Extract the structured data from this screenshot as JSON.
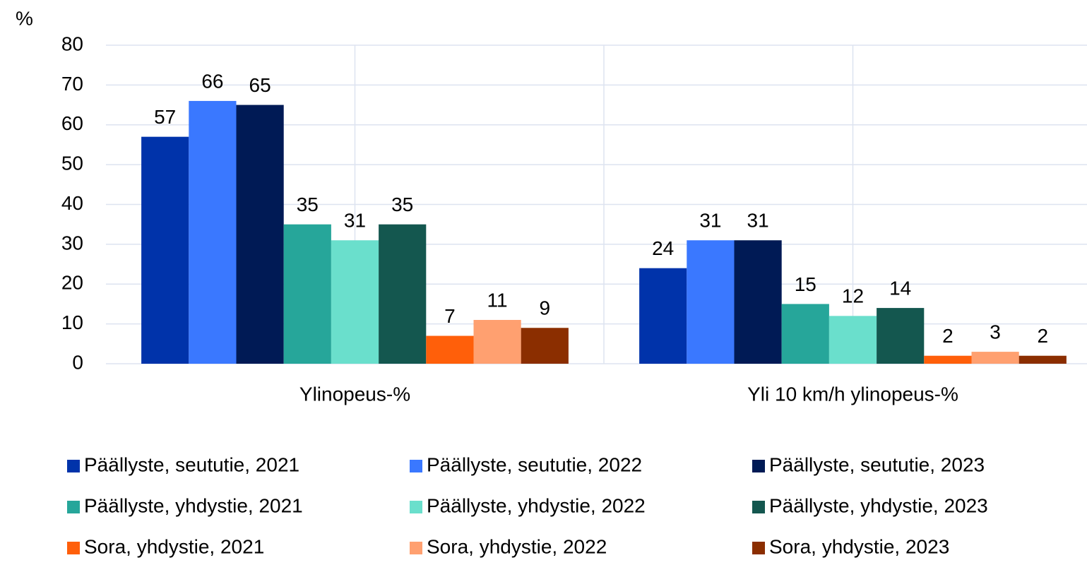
{
  "chart_data": {
    "type": "bar",
    "y_label": "%",
    "categories": [
      "Ylinopeus-%",
      "Yli 10 km/h ylinopeus-%"
    ],
    "ylim": [
      0,
      80
    ],
    "yticks": [
      0,
      10,
      20,
      30,
      40,
      50,
      60,
      70,
      80
    ],
    "grid": true,
    "series": [
      {
        "name": "Päällyste, seututie, 2021",
        "color": "#0033aa",
        "values": [
          57,
          24
        ]
      },
      {
        "name": "Päällyste, seututie, 2022",
        "color": "#3a78ff",
        "values": [
          66,
          31
        ]
      },
      {
        "name": "Päällyste, seututie, 2023",
        "color": "#001a55",
        "values": [
          65,
          31
        ]
      },
      {
        "name": "Päällyste, yhdystie, 2021",
        "color": "#26a69a",
        "values": [
          35,
          15
        ]
      },
      {
        "name": "Päällyste, yhdystie, 2022",
        "color": "#6adfcc",
        "values": [
          31,
          12
        ]
      },
      {
        "name": "Päällyste, yhdystie, 2023",
        "color": "#14574f",
        "values": [
          35,
          14
        ]
      },
      {
        "name": "Sora, yhdystie, 2021",
        "color": "#ff5f0a",
        "values": [
          7,
          2
        ]
      },
      {
        "name": "Sora, yhdystie, 2022",
        "color": "#ffa070",
        "values": [
          11,
          3
        ]
      },
      {
        "name": "Sora, yhdystie, 2023",
        "color": "#8b2e00",
        "values": [
          9,
          2
        ]
      }
    ]
  }
}
